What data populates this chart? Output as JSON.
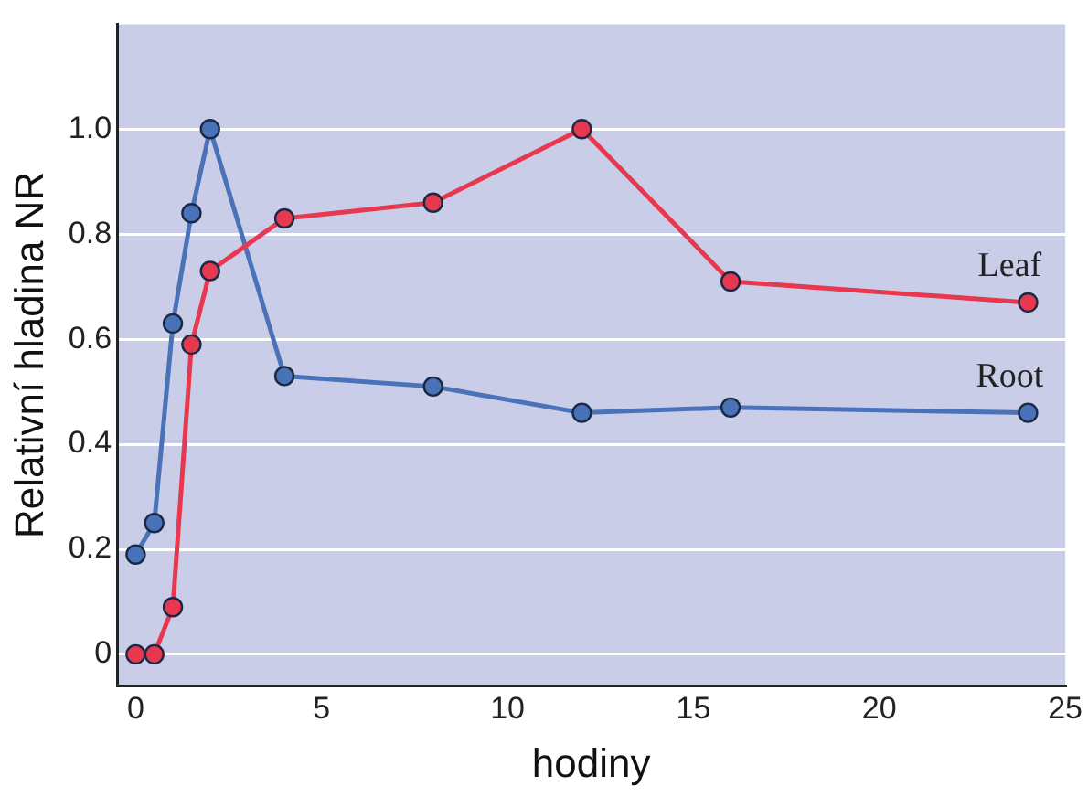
{
  "chart_data": {
    "type": "line",
    "xlabel": "hodiny",
    "ylabel": "Relativní hladina NR",
    "xlim": [
      -0.5,
      25
    ],
    "ylim": [
      -0.06,
      1.2
    ],
    "xticks": [
      0,
      5,
      10,
      15,
      20,
      25
    ],
    "yticks": [
      0,
      {
        "value": 0.2,
        "label": "0.2"
      },
      {
        "value": 0.4,
        "label": "0.4"
      },
      {
        "value": 0.6,
        "label": "0.6"
      },
      {
        "value": 0.8,
        "label": "0.8"
      },
      {
        "value": 1,
        "label": "1.0"
      }
    ],
    "grid": "y",
    "legend": false,
    "marker": "circle",
    "line_style": "solid",
    "series": [
      {
        "name": "Leaf",
        "color": "#e8384f",
        "x": [
          0,
          0.5,
          1,
          1.5,
          2,
          4,
          8,
          12,
          16,
          24
        ],
        "values": [
          0,
          0,
          0.09,
          0.59,
          0.73,
          0.83,
          0.86,
          1.0,
          0.71,
          0.67
        ]
      },
      {
        "name": "Root",
        "color": "#4a72b8",
        "x": [
          0,
          0.5,
          1,
          1.5,
          2,
          4,
          8,
          12,
          16,
          24
        ],
        "values": [
          0.19,
          0.25,
          0.63,
          0.84,
          1.0,
          0.53,
          0.51,
          0.46,
          0.47,
          0.46
        ]
      }
    ]
  }
}
